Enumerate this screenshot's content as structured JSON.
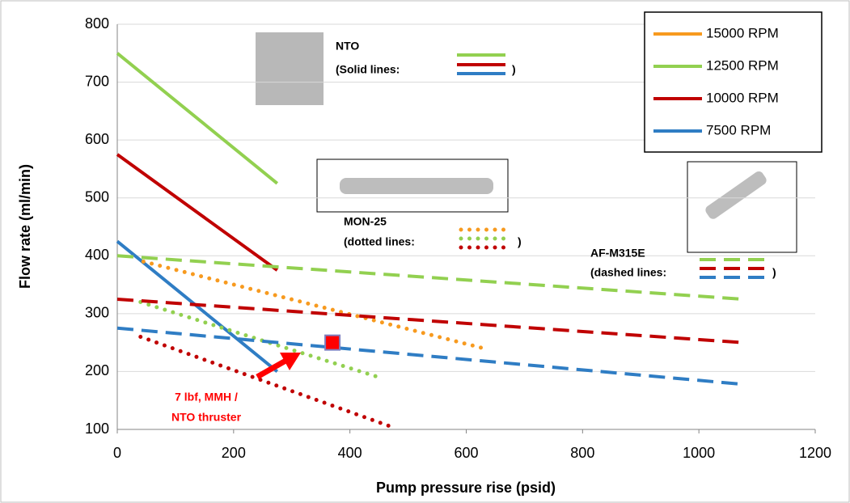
{
  "chart_data": {
    "type": "line",
    "x_label": "Pump pressure rise (psid)",
    "y_label": "Flow rate (ml/min)",
    "xlim": [
      0,
      1200
    ],
    "ylim": [
      100,
      800
    ],
    "xticks": [
      0,
      200,
      400,
      600,
      800,
      1000,
      1200
    ],
    "yticks": [
      100,
      200,
      300,
      400,
      500,
      600,
      700,
      800
    ],
    "grid": true,
    "legend_position": "upper right",
    "legend": [
      {
        "name": "15000 RPM",
        "color": "#f79a1f"
      },
      {
        "name": "12500 RPM",
        "color": "#92d050"
      },
      {
        "name": "10000 RPM",
        "color": "#c00000"
      },
      {
        "name": "7500 RPM",
        "color": "#2f7dc4"
      }
    ],
    "groups": [
      {
        "title": "NTO",
        "note": "(Solid lines:",
        "note_end": ")",
        "style": "solid",
        "series": [
          {
            "color": "#92d050",
            "x": [
              0,
              275
            ],
            "values": [
              750,
              525
            ]
          },
          {
            "color": "#c00000",
            "x": [
              0,
              275
            ],
            "values": [
              575,
              375
            ]
          },
          {
            "color": "#2f7dc4",
            "x": [
              0,
              275
            ],
            "values": [
              425,
              200
            ]
          }
        ]
      },
      {
        "title": "MON-25",
        "note": "(dotted lines:",
        "note_end": ")",
        "style": "dotted",
        "series": [
          {
            "color": "#f79a1f",
            "x": [
              45,
              630
            ],
            "values": [
              390,
              240
            ]
          },
          {
            "color": "#92d050",
            "x": [
              40,
              450
            ],
            "values": [
              320,
              190
            ]
          },
          {
            "color": "#c00000",
            "x": [
              40,
              470
            ],
            "values": [
              260,
              105
            ]
          }
        ]
      },
      {
        "title": "AF-M315E",
        "note": "(dashed lines:",
        "note_end": ")",
        "style": "dashed",
        "series": [
          {
            "color": "#92d050",
            "x": [
              0,
              1075
            ],
            "values": [
              400,
              325
            ]
          },
          {
            "color": "#c00000",
            "x": [
              0,
              1075
            ],
            "values": [
              325,
              250
            ]
          },
          {
            "color": "#2f7dc4",
            "x": [
              0,
              1075
            ],
            "values": [
              275,
              178
            ]
          }
        ]
      }
    ],
    "annotation": {
      "lines": [
        "7 lbf, MMH /",
        "NTO thruster"
      ],
      "color": "#ff0000",
      "x": 370,
      "y": 250
    }
  }
}
